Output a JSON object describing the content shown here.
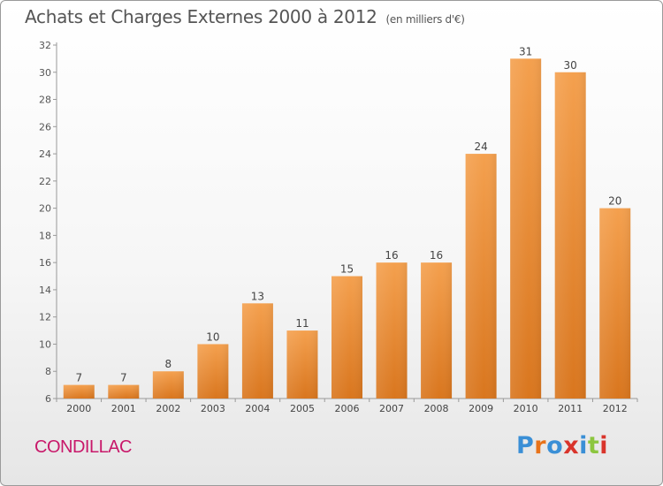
{
  "header": {
    "title": "Achats et Charges Externes 2000 à 2012",
    "subtitle": "(en milliers d'€)"
  },
  "footer": {
    "commune": "CONDILLAC",
    "logo_text": "Proxiti",
    "logo_colors": [
      "#3a8fd6",
      "#e8731a",
      "#3a8fd6",
      "#d9342b",
      "#3a8fd6",
      "#8cc63f",
      "#d9342b"
    ]
  },
  "chart_data": {
    "type": "bar",
    "title": "Achats et Charges Externes 2000 à 2012",
    "subtitle": "(en milliers d'€)",
    "categories": [
      "2000",
      "2001",
      "2002",
      "2003",
      "2004",
      "2005",
      "2006",
      "2007",
      "2008",
      "2009",
      "2010",
      "2011",
      "2012"
    ],
    "values": [
      7,
      7,
      8,
      10,
      13,
      11,
      15,
      16,
      16,
      24,
      31,
      30,
      20
    ],
    "ylim": [
      6,
      32
    ],
    "yticks": [
      6,
      8,
      10,
      12,
      14,
      16,
      18,
      20,
      22,
      24,
      26,
      28,
      30,
      32
    ],
    "grid": false,
    "legend": "none",
    "bar_color_top": "#f4a04e",
    "bar_color_bottom": "#d9761e"
  }
}
